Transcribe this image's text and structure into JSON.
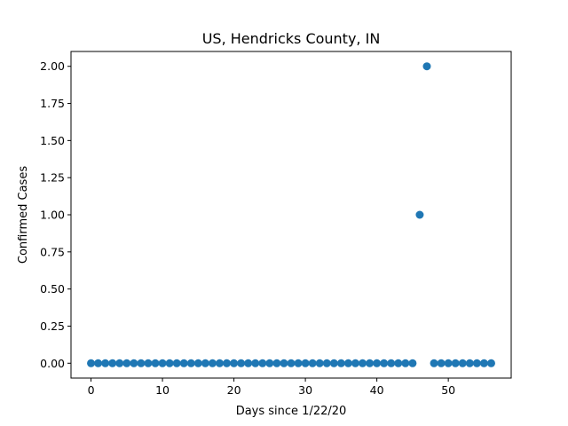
{
  "chart_data": {
    "type": "scatter",
    "title": "US, Hendricks County, IN",
    "xlabel": "Days since 1/22/20",
    "ylabel": "Confirmed Cases",
    "xlim": [
      -2.8,
      58.8
    ],
    "ylim": [
      -0.1,
      2.1
    ],
    "xticks": [
      0,
      10,
      20,
      30,
      40,
      50
    ],
    "xtick_labels": [
      "0",
      "10",
      "20",
      "30",
      "40",
      "50"
    ],
    "yticks": [
      0,
      0.25,
      0.5,
      0.75,
      1.0,
      1.25,
      1.5,
      1.75,
      2.0
    ],
    "ytick_labels": [
      "0.00",
      "0.25",
      "0.50",
      "0.75",
      "1.00",
      "1.25",
      "1.50",
      "1.75",
      "2.00"
    ],
    "grid": false,
    "marker_color": "#1f77b4",
    "x": [
      0,
      1,
      2,
      3,
      4,
      5,
      6,
      7,
      8,
      9,
      10,
      11,
      12,
      13,
      14,
      15,
      16,
      17,
      18,
      19,
      20,
      21,
      22,
      23,
      24,
      25,
      26,
      27,
      28,
      29,
      30,
      31,
      32,
      33,
      34,
      35,
      36,
      37,
      38,
      39,
      40,
      41,
      42,
      43,
      44,
      45,
      46,
      47,
      48,
      49,
      50,
      51,
      52,
      53,
      54,
      55,
      56
    ],
    "y": [
      0,
      0,
      0,
      0,
      0,
      0,
      0,
      0,
      0,
      0,
      0,
      0,
      0,
      0,
      0,
      0,
      0,
      0,
      0,
      0,
      0,
      0,
      0,
      0,
      0,
      0,
      0,
      0,
      0,
      0,
      0,
      0,
      0,
      0,
      0,
      0,
      0,
      0,
      0,
      0,
      0,
      0,
      0,
      0,
      0,
      0,
      1,
      2,
      0,
      0,
      0,
      0,
      0,
      0,
      0,
      0,
      0
    ]
  }
}
